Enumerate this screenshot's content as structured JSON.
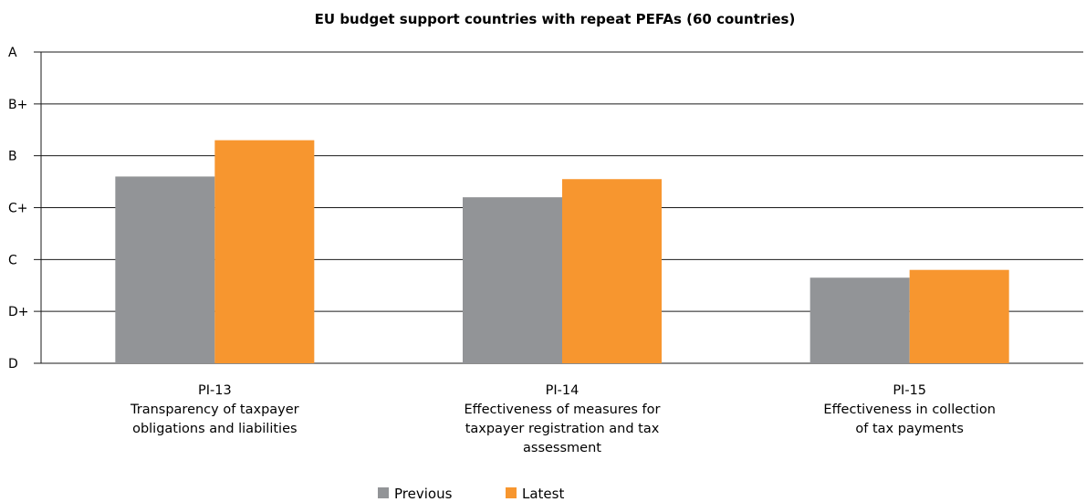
{
  "chart_data": {
    "type": "bar",
    "title": "EU budget support countries with repeat PEFAs (60 countries)",
    "xlabel": "",
    "ylabel": "",
    "y_scale": [
      "D",
      "D+",
      "C",
      "C+",
      "B",
      "B+",
      "A"
    ],
    "ylim": [
      0,
      6
    ],
    "categories": [
      [
        "PI-13",
        "Transparency of taxpayer",
        "obligations and liabilities"
      ],
      [
        "PI-14",
        "Effectiveness of measures for",
        "taxpayer registration and tax",
        "assessment"
      ],
      [
        "PI-15",
        "Effectiveness in collection",
        "of tax payments"
      ]
    ],
    "series": [
      {
        "name": "Previous",
        "color": "#929497",
        "values": [
          3.6,
          3.2,
          1.65
        ]
      },
      {
        "name": "Latest",
        "color": "#f7962f",
        "values": [
          4.3,
          3.55,
          1.8
        ]
      }
    ],
    "grid": true,
    "legend_position": "bottom-center"
  }
}
